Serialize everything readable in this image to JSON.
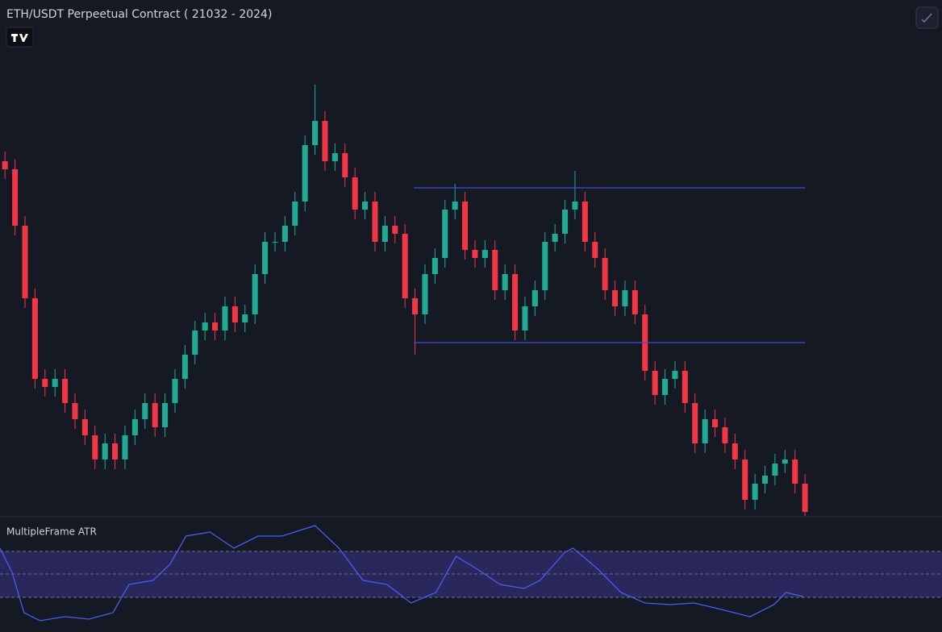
{
  "chart_data": {
    "type": "candlestick",
    "title": "ETH/USDT Perpeetual Contract  ( 21032  -  2024)",
    "xlim": [
      -0.5,
      93.7
    ],
    "ylim": [
      0,
      640
    ],
    "up_color": "#22ab94",
    "down_color": "#f23645",
    "open": [
      440,
      430,
      360,
      270,
      170,
      160,
      170,
      140,
      120,
      100,
      70,
      90,
      70,
      100,
      120,
      140,
      110,
      140,
      170,
      200,
      230,
      240,
      230,
      260,
      240,
      250,
      300,
      340,
      340,
      360,
      390,
      460,
      490,
      440,
      450,
      420,
      380,
      390,
      340,
      360,
      350,
      270,
      250,
      300,
      320,
      380,
      390,
      330,
      320,
      330,
      280,
      300,
      230,
      260,
      280,
      340,
      350,
      380,
      390,
      340,
      320,
      280,
      260,
      280,
      250,
      180,
      150,
      170,
      180,
      140,
      90,
      120,
      110,
      90,
      70,
      20,
      40,
      50,
      65,
      70,
      40
    ],
    "high": [
      452,
      442,
      372,
      282,
      182,
      182,
      182,
      152,
      132,
      112,
      102,
      102,
      112,
      132,
      152,
      152,
      152,
      182,
      212,
      242,
      252,
      252,
      272,
      272,
      262,
      312,
      352,
      352,
      372,
      402,
      472,
      535,
      502,
      462,
      462,
      432,
      402,
      402,
      372,
      372,
      362,
      282,
      312,
      332,
      392,
      412,
      402,
      342,
      342,
      342,
      312,
      312,
      272,
      292,
      352,
      362,
      392,
      428,
      402,
      352,
      332,
      292,
      292,
      292,
      262,
      192,
      182,
      192,
      192,
      152,
      132,
      132,
      122,
      102,
      82,
      52,
      62,
      77,
      82,
      82,
      52
    ],
    "low": [
      418,
      348,
      258,
      158,
      148,
      148,
      128,
      108,
      88,
      58,
      58,
      58,
      58,
      88,
      108,
      98,
      98,
      128,
      158,
      188,
      218,
      218,
      218,
      228,
      228,
      238,
      288,
      328,
      328,
      348,
      378,
      448,
      428,
      428,
      408,
      368,
      368,
      328,
      328,
      338,
      258,
      200,
      238,
      288,
      308,
      368,
      318,
      308,
      308,
      268,
      268,
      218,
      218,
      248,
      268,
      328,
      338,
      368,
      328,
      308,
      268,
      248,
      248,
      238,
      168,
      138,
      138,
      158,
      128,
      78,
      78,
      98,
      78,
      58,
      8,
      8,
      28,
      38,
      53,
      28,
      0
    ],
    "close": [
      430,
      360,
      270,
      170,
      160,
      170,
      140,
      120,
      100,
      70,
      90,
      70,
      100,
      120,
      140,
      110,
      140,
      170,
      200,
      230,
      240,
      230,
      260,
      240,
      250,
      300,
      340,
      340,
      360,
      390,
      460,
      490,
      440,
      450,
      420,
      380,
      390,
      340,
      360,
      350,
      270,
      250,
      300,
      320,
      380,
      390,
      330,
      320,
      330,
      280,
      300,
      230,
      260,
      280,
      340,
      350,
      380,
      390,
      340,
      320,
      280,
      260,
      280,
      250,
      180,
      150,
      170,
      180,
      140,
      90,
      120,
      110,
      90,
      70,
      20,
      40,
      50,
      65,
      70,
      40,
      5
    ],
    "levels": [
      407,
      215
    ],
    "levels_from": 40.9,
    "levels_to": 80,
    "level_color": "#3d4fd6",
    "indicator": {
      "title": "MultipleFrame ATR",
      "ylim": [
        0,
        136
      ],
      "band": [
        43,
        100
      ],
      "midline": 72,
      "band_color": "#2e2a66",
      "line_color": "#4a5cf2",
      "x": [
        -0.5,
        0.7,
        1.9,
        3.5,
        6,
        8.4,
        10.8,
        12.4,
        14.8,
        16.5,
        18.1,
        20.5,
        22.9,
        25.3,
        27.7,
        31,
        33.4,
        35.8,
        38.2,
        40.6,
        43.1,
        45.1,
        47.1,
        49.5,
        51.9,
        53.5,
        56,
        56.8,
        59.2,
        61.6,
        64,
        66.5,
        68.9,
        71.3,
        74.5,
        76.9,
        78.1,
        79.8
      ],
      "values": [
        104,
        74,
        24,
        14,
        19,
        16,
        24,
        59,
        64,
        84,
        119,
        124,
        104,
        119,
        119,
        132,
        104,
        64,
        59,
        36,
        49,
        94,
        79,
        59,
        54,
        64,
        99,
        104,
        79,
        49,
        36,
        34,
        36,
        29,
        19,
        34,
        49,
        44
      ]
    }
  }
}
